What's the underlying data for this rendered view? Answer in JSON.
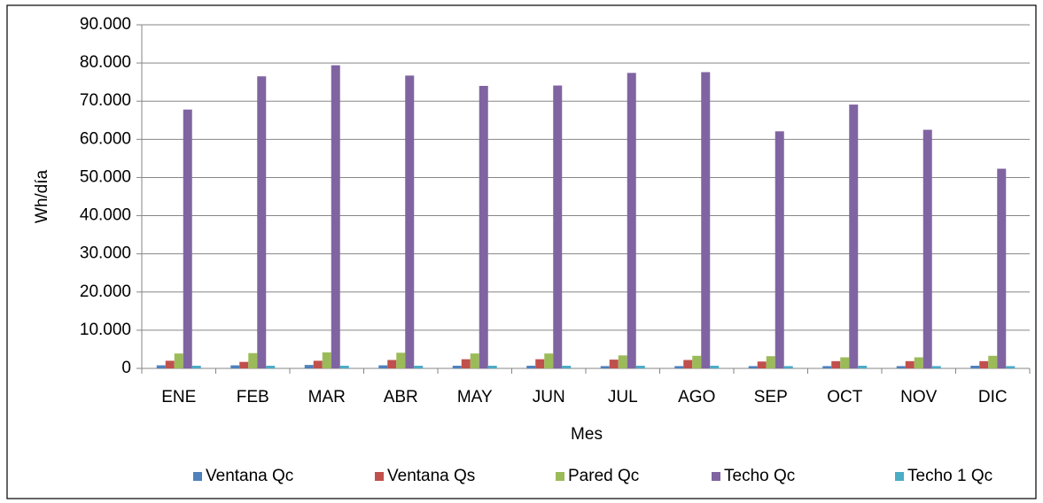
{
  "chart_data": {
    "type": "bar",
    "x_label": "Mes",
    "y_label": "Wh/día",
    "categories": [
      "ENE",
      "FEB",
      "MAR",
      "ABR",
      "MAY",
      "JUN",
      "JUL",
      "AGO",
      "SEP",
      "OCT",
      "NOV",
      "DIC"
    ],
    "series": [
      {
        "name": "Ventana Qc",
        "color": "#4f81bd",
        "values": [
          800,
          800,
          900,
          800,
          700,
          700,
          600,
          600,
          600,
          600,
          600,
          700
        ]
      },
      {
        "name": "Ventana Qs",
        "color": "#c0504d",
        "values": [
          2000,
          1700,
          2000,
          2200,
          2400,
          2400,
          2300,
          2200,
          1800,
          1900,
          1900,
          1900
        ]
      },
      {
        "name": "Pared Qc",
        "color": "#9bbb59",
        "values": [
          3900,
          4000,
          4200,
          4100,
          3900,
          3900,
          3400,
          3300,
          3200,
          2900,
          2900,
          3300
        ]
      },
      {
        "name": "Techo Qc",
        "color": "#8064a2",
        "values": [
          67800,
          76500,
          79400,
          76700,
          74000,
          74100,
          77400,
          77600,
          62100,
          69100,
          62500,
          52300
        ]
      },
      {
        "name": "Techo 1 Qc",
        "color": "#4bacc6",
        "values": [
          700,
          700,
          700,
          700,
          700,
          700,
          700,
          700,
          600,
          700,
          600,
          600
        ]
      }
    ],
    "ylim": [
      0,
      90000
    ],
    "yticks": [
      0,
      {
        "value": 10000,
        "label": "10.000"
      },
      {
        "value": 20000,
        "label": "20.000"
      },
      {
        "value": 30000,
        "label": "30.000"
      },
      {
        "value": 40000,
        "label": "40.000"
      },
      {
        "value": 50000,
        "label": "50.000"
      },
      {
        "value": 60000,
        "label": "60.000"
      },
      {
        "value": 70000,
        "label": "70.000"
      },
      {
        "value": 80000,
        "label": "80.000"
      },
      {
        "value": 90000,
        "label": "90.000"
      }
    ],
    "grid": true,
    "legend": "bottom"
  }
}
